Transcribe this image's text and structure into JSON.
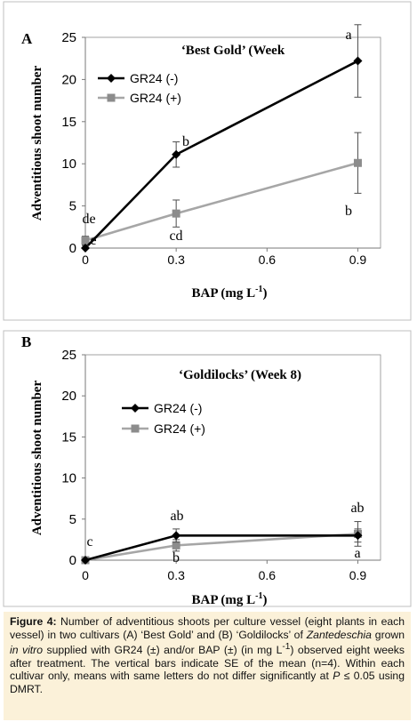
{
  "chart_data": [
    {
      "type": "line",
      "panel_label": "A",
      "title": "‘Best   Gold’   (Week",
      "xlabel": "BAP (mg L",
      "xlabel_sup": "-1",
      "xlabel_close": ")",
      "ylabel": "Adventitious shoot number",
      "x": [
        0,
        0.3,
        0.9
      ],
      "xlim": [
        0,
        0.975
      ],
      "ylim": [
        0,
        25
      ],
      "xticks": [
        "0",
        "0.3",
        "0.6",
        "0.9"
      ],
      "xtick_values": [
        0,
        0.3,
        0.6,
        0.9
      ],
      "yticks": [
        "0",
        "5",
        "10",
        "15",
        "20",
        "25"
      ],
      "ytick_values": [
        0,
        5,
        10,
        15,
        20,
        25
      ],
      "legend_position": "top-left",
      "grid": false,
      "series": [
        {
          "name": "GR24 (-)",
          "values": [
            0.0,
            11.1,
            22.2
          ],
          "errors": [
            0.3,
            1.5,
            4.3
          ],
          "color": "#000000",
          "marker": "diamond",
          "letters": [
            "e",
            "b",
            "a"
          ]
        },
        {
          "name": "GR24 (+)",
          "values": [
            0.9,
            4.1,
            10.1
          ],
          "errors": [
            0.5,
            1.6,
            3.6
          ],
          "color": "#a6a6a6",
          "marker": "square",
          "letters": [
            "de",
            "cd",
            "b"
          ]
        }
      ]
    },
    {
      "type": "line",
      "panel_label": "B",
      "title": "‘Goldilocks’ (Week 8)",
      "xlabel": "BAP (mg L",
      "xlabel_sup": "-1",
      "xlabel_close": ")",
      "ylabel": "Adventitious shoot number",
      "x": [
        0,
        0.3,
        0.9
      ],
      "xlim": [
        0,
        0.975
      ],
      "ylim": [
        0,
        25
      ],
      "xticks": [
        "0",
        "0.3",
        "0.6",
        "0.9"
      ],
      "xtick_values": [
        0,
        0.3,
        0.6,
        0.9
      ],
      "yticks": [
        "0",
        "5",
        "10",
        "15",
        "20",
        "25"
      ],
      "ytick_values": [
        0,
        5,
        10,
        15,
        20,
        25
      ],
      "legend_position": "top-left",
      "grid": false,
      "series": [
        {
          "name": "GR24 (-)",
          "values": [
            0.0,
            3.0,
            3.0
          ],
          "errors": [
            0.1,
            0.8,
            0.8
          ],
          "color": "#000000",
          "marker": "diamond",
          "letters": [
            "c",
            "ab",
            "a"
          ]
        },
        {
          "name": "GR24 (+)",
          "values": [
            0.0,
            1.8,
            3.2
          ],
          "errors": [
            0.1,
            0.7,
            1.5
          ],
          "color": "#a6a6a6",
          "marker": "square",
          "letters": [
            "",
            "b",
            "ab"
          ]
        }
      ]
    }
  ],
  "caption": {
    "label": "Figure 4:",
    "text1": " Number of adventitious shoots per culture vessel (eight plants in each vessel) in two cultivars (A) ‘Best Gold’ and (B) ‘Goldilocks’ of ",
    "genus": "Zantedeschia",
    "text2": " grown ",
    "in_vitro": "in vitro",
    "text3": " supplied with GR24 (±) and/or BAP (±) (in mg L",
    "sup": "-1",
    "text4": ") observed eight weeks after treatment. The vertical bars indicate SE of the mean (n=4). Within each cultivar only, means with same letters do not differ significantly at ",
    "p": "P",
    "text5": " ≤ 0.05 using DMRT."
  }
}
